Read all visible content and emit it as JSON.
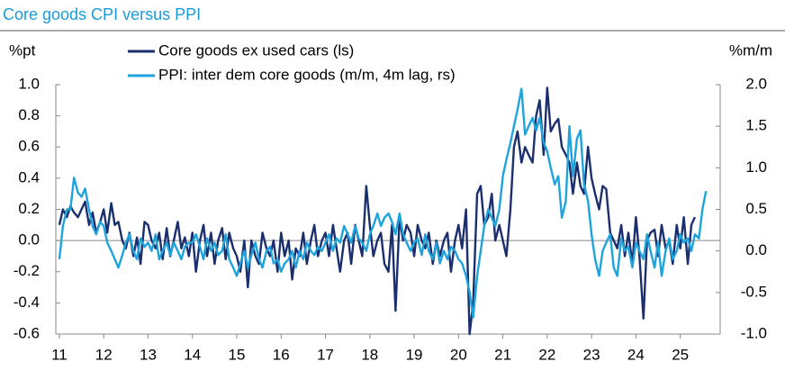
{
  "chart_data": {
    "type": "line",
    "title": "Core goods CPI versus PPI",
    "ylabel": "%pt",
    "y2label": "%m/m",
    "x": [
      11,
      11.08,
      11.17,
      11.25,
      11.33,
      11.42,
      11.5,
      11.58,
      11.67,
      11.75,
      11.83,
      11.92,
      12,
      12.08,
      12.17,
      12.25,
      12.33,
      12.42,
      12.5,
      12.58,
      12.67,
      12.75,
      12.83,
      12.92,
      13,
      13.08,
      13.17,
      13.25,
      13.33,
      13.42,
      13.5,
      13.58,
      13.67,
      13.75,
      13.83,
      13.92,
      14,
      14.08,
      14.17,
      14.25,
      14.33,
      14.42,
      14.5,
      14.58,
      14.67,
      14.75,
      14.83,
      14.92,
      15,
      15.08,
      15.17,
      15.25,
      15.33,
      15.42,
      15.5,
      15.58,
      15.67,
      15.75,
      15.83,
      15.92,
      16,
      16.08,
      16.17,
      16.25,
      16.33,
      16.42,
      16.5,
      16.58,
      16.67,
      16.75,
      16.83,
      16.92,
      17,
      17.08,
      17.17,
      17.25,
      17.33,
      17.42,
      17.5,
      17.58,
      17.67,
      17.75,
      17.83,
      17.92,
      18,
      18.08,
      18.17,
      18.25,
      18.33,
      18.42,
      18.5,
      18.58,
      18.67,
      18.75,
      18.83,
      18.92,
      19,
      19.08,
      19.17,
      19.25,
      19.33,
      19.42,
      19.5,
      19.58,
      19.67,
      19.75,
      19.83,
      19.92,
      20,
      20.08,
      20.17,
      20.25,
      20.33,
      20.42,
      20.5,
      20.58,
      20.67,
      20.75,
      20.83,
      20.92,
      21,
      21.08,
      21.17,
      21.25,
      21.33,
      21.42,
      21.5,
      21.58,
      21.67,
      21.75,
      21.83,
      21.92,
      22,
      22.08,
      22.17,
      22.25,
      22.33,
      22.42,
      22.5,
      22.58,
      22.67,
      22.75,
      22.83,
      22.92,
      23,
      23.08,
      23.17,
      23.25,
      23.33,
      23.42,
      23.5,
      23.58,
      23.67,
      23.75,
      23.83,
      23.92,
      24,
      24.08,
      24.17,
      24.25,
      24.33,
      24.42,
      24.5,
      24.58,
      24.67,
      24.75,
      24.83,
      24.92,
      25,
      25.08,
      25.17,
      25.25,
      25.33,
      25.42,
      25.5,
      25.58
    ],
    "series": [
      {
        "name": "Core goods ex used cars (ls)",
        "color": "#1b2f6e",
        "values": [
          0.1,
          0.2,
          0.15,
          0.22,
          0.18,
          0.15,
          0.2,
          0.25,
          0.1,
          0.18,
          0.05,
          0.12,
          0.2,
          0.05,
          0.24,
          0.1,
          0.12,
          0.0,
          -0.05,
          0.05,
          -0.1,
          0.02,
          -0.15,
          0.12,
          0.1,
          0.0,
          -0.05,
          0.05,
          -0.12,
          0.08,
          -0.1,
          0.0,
          0.12,
          -0.05,
          0.02,
          -0.1,
          0.05,
          -0.2,
          0.0,
          0.1,
          -0.1,
          0.05,
          -0.15,
          0.0,
          0.08,
          -0.12,
          0.05,
          -0.05,
          -0.1,
          -0.2,
          0.0,
          -0.3,
          0.0,
          -0.1,
          -0.15,
          0.05,
          -0.05,
          -0.1,
          0.0,
          -0.2,
          0.05,
          -0.1,
          0.0,
          -0.25,
          -0.05,
          -0.1,
          0.05,
          -0.15,
          0.0,
          0.1,
          -0.1,
          0.0,
          0.05,
          -0.1,
          0.1,
          -0.05,
          -0.2,
          0.0,
          0.05,
          -0.15,
          0.1,
          0.0,
          -0.1,
          0.35,
          0.1,
          -0.1,
          0.0,
          0.05,
          -0.15,
          -0.2,
          0.1,
          -0.45,
          0.15,
          0.0,
          0.1,
          0.05,
          -0.1,
          0.1,
          0.0,
          -0.05,
          0.05,
          -0.15,
          0.0,
          -0.1,
          0.0,
          0.05,
          -0.2,
          0.0,
          0.1,
          -0.05,
          0.2,
          -0.6,
          -0.4,
          0.3,
          0.35,
          0.1,
          0.15,
          0.3,
          0.0,
          0.1,
          0.0,
          -0.1,
          0.2,
          0.6,
          0.7,
          0.5,
          0.6,
          0.55,
          0.5,
          0.8,
          0.9,
          0.55,
          0.98,
          0.7,
          0.75,
          0.78,
          0.6,
          0.55,
          0.5,
          0.3,
          0.5,
          0.35,
          0.3,
          0.6,
          0.4,
          0.3,
          0.2,
          0.35,
          0.33,
          0.05,
          0.0,
          -0.05,
          0.1,
          -0.1,
          0.05,
          -0.15,
          0.15,
          -0.1,
          -0.5,
          0.0,
          0.05,
          0.07,
          -0.1,
          0.1,
          -0.05,
          0.0,
          -0.15,
          0.1,
          -0.05,
          0.15,
          -0.15,
          0.1,
          0.15,
          null,
          null,
          null
        ]
      },
      {
        "name": "PPI: inter dem core goods (m/m, 4m lag, rs)",
        "color": "#1ea4dc",
        "axis": "y2",
        "values": [
          -0.1,
          0.3,
          0.5,
          0.5,
          0.88,
          0.7,
          0.65,
          0.75,
          0.5,
          0.3,
          0.2,
          0.35,
          0.3,
          0.1,
          0.0,
          -0.1,
          -0.2,
          -0.05,
          0.1,
          0.2,
          0.0,
          -0.1,
          0.15,
          0.05,
          0.1,
          0.0,
          0.2,
          -0.1,
          0.0,
          0.1,
          -0.05,
          0.1,
          0.0,
          -0.1,
          0.05,
          0.1,
          0.1,
          0.2,
          0.05,
          -0.1,
          0.15,
          0.0,
          0.1,
          -0.05,
          0.0,
          0.2,
          -0.1,
          -0.2,
          -0.3,
          -0.15,
          0.0,
          -0.2,
          -0.05,
          0.1,
          -0.1,
          -0.2,
          0.0,
          0.05,
          -0.15,
          -0.1,
          -0.25,
          -0.15,
          -0.1,
          0.0,
          -0.2,
          0.0,
          -0.1,
          0.1,
          0.0,
          -0.05,
          0.05,
          0.0,
          0.1,
          0.2,
          0.0,
          0.15,
          0.1,
          0.3,
          0.2,
          0.1,
          0.3,
          0.15,
          0.1,
          0.0,
          0.2,
          0.3,
          0.45,
          0.3,
          0.4,
          0.45,
          0.35,
          0.2,
          0.45,
          0.2,
          0.1,
          0.0,
          0.1,
          0.15,
          -0.05,
          0.2,
          0.0,
          -0.1,
          0.1,
          -0.15,
          0.0,
          -0.1,
          0.05,
          0.0,
          -0.1,
          -0.15,
          -0.3,
          -0.5,
          -0.8,
          -0.3,
          0.0,
          0.3,
          0.5,
          0.4,
          0.3,
          0.5,
          0.9,
          1.1,
          1.3,
          1.5,
          1.7,
          1.95,
          1.4,
          1.5,
          1.6,
          1.45,
          1.6,
          1.3,
          1.2,
          1.0,
          0.8,
          0.9,
          0.4,
          0.6,
          1.5,
          0.9,
          1.35,
          1.45,
          0.8,
          0.6,
          0.2,
          -0.1,
          -0.3,
          0.0,
          0.1,
          0.2,
          -0.2,
          -0.3,
          0.15,
          0.0,
          0.05,
          -0.2,
          0.1,
          0.0,
          -0.1,
          0.2,
          0.0,
          -0.2,
          0.1,
          -0.3,
          0.0,
          0.15,
          -0.1,
          0.0,
          0.2,
          0.1,
          0.15,
          0.0,
          0.2,
          0.15,
          0.5,
          0.72
        ]
      }
    ],
    "xlim": [
      10.92,
      25.9
    ],
    "xticks": [
      11,
      12,
      13,
      14,
      15,
      16,
      17,
      18,
      19,
      20,
      21,
      22,
      23,
      24,
      25
    ],
    "ylim": [
      -0.6,
      1.0
    ],
    "yticks": [
      {
        "value": -0.6,
        "label": "-0.6"
      },
      {
        "value": -0.4,
        "label": "-0.4"
      },
      {
        "value": -0.2,
        "label": "-0.2"
      },
      {
        "value": 0,
        "label": "0.0"
      },
      {
        "value": 0.2,
        "label": "0.2"
      },
      {
        "value": 0.4,
        "label": "0.4"
      },
      {
        "value": 0.6,
        "label": "0.6"
      },
      {
        "value": 0.8,
        "label": "0.8"
      },
      {
        "value": 1,
        "label": "1.0"
      }
    ],
    "y2lim": [
      -1.0,
      2.0
    ],
    "y2ticks": [
      {
        "value": -1,
        "label": "-1.0"
      },
      {
        "value": -0.5,
        "label": "-0.5"
      },
      {
        "value": 0,
        "label": "0.0"
      },
      {
        "value": 0.5,
        "label": "0.5"
      },
      {
        "value": 1,
        "label": "1.0"
      },
      {
        "value": 1.5,
        "label": "1.5"
      },
      {
        "value": 2,
        "label": "2.0"
      }
    ],
    "grid": false,
    "legend": "top"
  }
}
